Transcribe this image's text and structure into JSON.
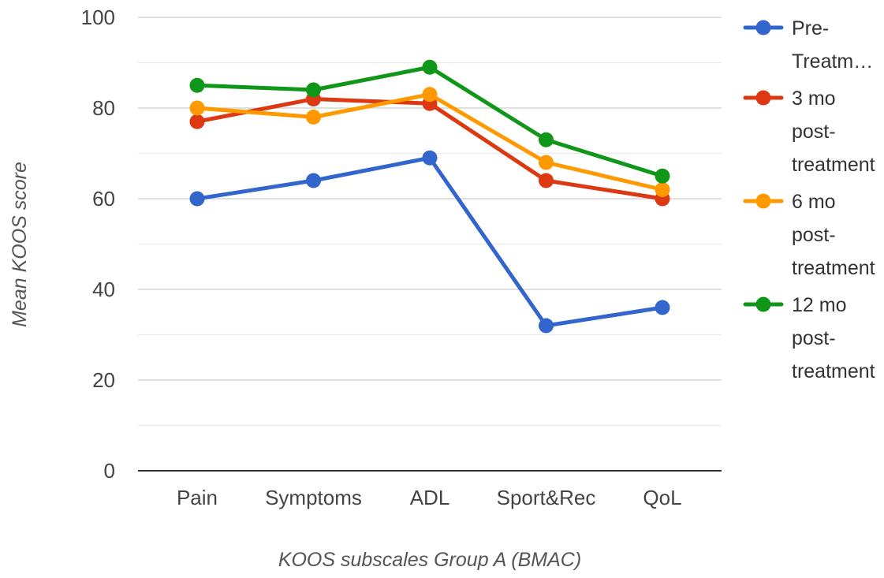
{
  "chart_data": {
    "type": "line",
    "xlabel": "KOOS subscales Group A (BMAC)",
    "ylabel": "Mean KOOS score",
    "ylim": [
      0,
      100
    ],
    "yticks": [
      0,
      20,
      40,
      60,
      80,
      100
    ],
    "minor_gridlines": true,
    "legend_position": "right",
    "categories": [
      "Pain",
      "Symptoms",
      "ADL",
      "Sport&Rec",
      "QoL"
    ],
    "series": [
      {
        "name": "Pre-Treatment",
        "legend_lines": [
          "Pre-",
          "Treatm…"
        ],
        "color": "#3366cc",
        "values": [
          60,
          64,
          69,
          32,
          36
        ]
      },
      {
        "name": "3 mo post-treatment",
        "legend_lines": [
          "3 mo",
          "post-",
          "treatment"
        ],
        "color": "#dc3912",
        "values": [
          77,
          82,
          81,
          64,
          60
        ]
      },
      {
        "name": "6 mo post-treatment",
        "legend_lines": [
          "6 mo",
          "post-",
          "treatment"
        ],
        "color": "#ff9900",
        "values": [
          80,
          78,
          83,
          68,
          62
        ]
      },
      {
        "name": "12 mo post-treatment",
        "legend_lines": [
          "12 mo",
          "post-",
          "treatment"
        ],
        "color": "#109618",
        "values": [
          85,
          84,
          89,
          73,
          65
        ]
      }
    ]
  }
}
